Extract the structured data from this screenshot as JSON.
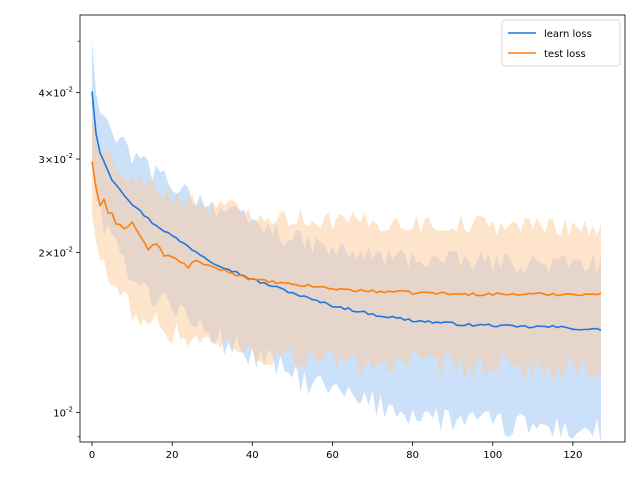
{
  "chart_data": {
    "type": "line",
    "title": "",
    "xlabel": "",
    "ylabel": "",
    "y_scale": "log",
    "xlim": [
      -3,
      133
    ],
    "ylim": [
      0.0088,
      0.056
    ],
    "x_ticks": [
      0,
      20,
      40,
      60,
      80,
      100,
      120
    ],
    "x_tick_labels": [
      "0",
      "20",
      "40",
      "60",
      "80",
      "100",
      "120"
    ],
    "y_ticks": [
      0.01,
      0.02,
      0.03,
      0.04
    ],
    "y_tick_labels": [
      "10^{-2}",
      "2×10^{-2}",
      "3×10^{-2}",
      "4×10^{-2}"
    ],
    "legend_position": "top-right",
    "grid": false,
    "x_step": 1,
    "series": [
      {
        "name": "learn loss",
        "color": "#1f77e0",
        "band_color": "#a0c8f5",
        "band_opacity": 0.55,
        "anchors": [
          [
            0,
            0.0402
          ],
          [
            1,
            0.0335
          ],
          [
            2,
            0.0308
          ],
          [
            5,
            0.0275
          ],
          [
            10,
            0.0247
          ],
          [
            15,
            0.0228
          ],
          [
            20,
            0.0215
          ],
          [
            25,
            0.0203
          ],
          [
            30,
            0.0192
          ],
          [
            35,
            0.0185
          ],
          [
            40,
            0.0178
          ],
          [
            45,
            0.0173
          ],
          [
            50,
            0.0168
          ],
          [
            55,
            0.0163
          ],
          [
            60,
            0.0159
          ],
          [
            65,
            0.0156
          ],
          [
            70,
            0.0153
          ],
          [
            75,
            0.0151
          ],
          [
            80,
            0.0149
          ],
          [
            85,
            0.0148
          ],
          [
            90,
            0.0147
          ],
          [
            95,
            0.0146
          ],
          [
            100,
            0.0146
          ],
          [
            105,
            0.0145
          ],
          [
            110,
            0.0145
          ],
          [
            115,
            0.0145
          ],
          [
            120,
            0.0144
          ],
          [
            127,
            0.0143
          ]
        ],
        "band_upper_anchors": [
          [
            0,
            0.05
          ],
          [
            1,
            0.04
          ],
          [
            3,
            0.036
          ],
          [
            5,
            0.0335
          ],
          [
            10,
            0.0305
          ],
          [
            15,
            0.0285
          ],
          [
            20,
            0.027
          ],
          [
            25,
            0.0258
          ],
          [
            30,
            0.0245
          ],
          [
            35,
            0.0236
          ],
          [
            40,
            0.0228
          ],
          [
            45,
            0.022
          ],
          [
            50,
            0.0212
          ],
          [
            55,
            0.0207
          ],
          [
            60,
            0.0202
          ],
          [
            65,
            0.0199
          ],
          [
            70,
            0.0197
          ],
          [
            75,
            0.0196
          ],
          [
            80,
            0.0195
          ],
          [
            90,
            0.0193
          ],
          [
            100,
            0.0192
          ],
          [
            110,
            0.0191
          ],
          [
            120,
            0.019
          ],
          [
            127,
            0.0191
          ]
        ],
        "band_lower_anchors": [
          [
            0,
            0.0305
          ],
          [
            1,
            0.025
          ],
          [
            3,
            0.0225
          ],
          [
            5,
            0.0205
          ],
          [
            10,
            0.0185
          ],
          [
            15,
            0.0167
          ],
          [
            20,
            0.016
          ],
          [
            25,
            0.0148
          ],
          [
            30,
            0.014
          ],
          [
            35,
            0.0133
          ],
          [
            40,
            0.0128
          ],
          [
            45,
            0.0123
          ],
          [
            50,
            0.0118
          ],
          [
            55,
            0.0113
          ],
          [
            60,
            0.011
          ],
          [
            65,
            0.0106
          ],
          [
            70,
            0.0104
          ],
          [
            75,
            0.0102
          ],
          [
            80,
            0.01
          ],
          [
            85,
            0.0098
          ],
          [
            90,
            0.0097
          ],
          [
            95,
            0.0096
          ],
          [
            100,
            0.0095
          ],
          [
            110,
            0.0094
          ],
          [
            120,
            0.0093
          ],
          [
            127,
            0.0092
          ]
        ]
      },
      {
        "name": "test loss",
        "color": "#ff7f0e",
        "band_color": "#ffc999",
        "band_opacity": 0.5,
        "anchors": [
          [
            0,
            0.0297
          ],
          [
            1,
            0.0265
          ],
          [
            2,
            0.0245
          ],
          [
            3,
            0.0252
          ],
          [
            4,
            0.0238
          ],
          [
            5,
            0.0236
          ],
          [
            6,
            0.0225
          ],
          [
            7,
            0.0227
          ],
          [
            8,
            0.0222
          ],
          [
            10,
            0.0228
          ],
          [
            12,
            0.0215
          ],
          [
            14,
            0.0203
          ],
          [
            16,
            0.0208
          ],
          [
            18,
            0.0198
          ],
          [
            20,
            0.0196
          ],
          [
            22,
            0.0192
          ],
          [
            24,
            0.0188
          ],
          [
            26,
            0.0194
          ],
          [
            28,
            0.0189
          ],
          [
            30,
            0.0188
          ],
          [
            33,
            0.0185
          ],
          [
            36,
            0.0182
          ],
          [
            40,
            0.0178
          ],
          [
            45,
            0.0176
          ],
          [
            50,
            0.0174
          ],
          [
            55,
            0.0173
          ],
          [
            60,
            0.0171
          ],
          [
            65,
            0.017
          ],
          [
            70,
            0.0169
          ],
          [
            75,
            0.0169
          ],
          [
            80,
            0.0168
          ],
          [
            85,
            0.0168
          ],
          [
            90,
            0.0167
          ],
          [
            100,
            0.0167
          ],
          [
            110,
            0.0167
          ],
          [
            120,
            0.0167
          ],
          [
            127,
            0.0167
          ]
        ],
        "band_upper_anchors": [
          [
            0,
            0.037
          ],
          [
            1,
            0.033
          ],
          [
            3,
            0.031
          ],
          [
            5,
            0.0295
          ],
          [
            10,
            0.028
          ],
          [
            15,
            0.0265
          ],
          [
            20,
            0.0255
          ],
          [
            25,
            0.025
          ],
          [
            30,
            0.0245
          ],
          [
            35,
            0.0242
          ],
          [
            40,
            0.0238
          ],
          [
            45,
            0.0235
          ],
          [
            50,
            0.0233
          ],
          [
            60,
            0.023
          ],
          [
            70,
            0.0228
          ],
          [
            80,
            0.0227
          ],
          [
            90,
            0.0226
          ],
          [
            100,
            0.0226
          ],
          [
            110,
            0.0225
          ],
          [
            120,
            0.0225
          ],
          [
            127,
            0.0222
          ]
        ],
        "band_lower_anchors": [
          [
            0,
            0.0235
          ],
          [
            1,
            0.021
          ],
          [
            3,
            0.0185
          ],
          [
            5,
            0.017
          ],
          [
            10,
            0.0158
          ],
          [
            15,
            0.0148
          ],
          [
            20,
            0.0142
          ],
          [
            25,
            0.0138
          ],
          [
            30,
            0.0135
          ],
          [
            35,
            0.0132
          ],
          [
            40,
            0.013
          ],
          [
            45,
            0.0128
          ],
          [
            50,
            0.0127
          ],
          [
            60,
            0.0125
          ],
          [
            70,
            0.0124
          ],
          [
            80,
            0.0123
          ],
          [
            90,
            0.0122
          ],
          [
            100,
            0.0121
          ],
          [
            110,
            0.0121
          ],
          [
            120,
            0.012
          ],
          [
            127,
            0.0115
          ]
        ]
      }
    ]
  }
}
